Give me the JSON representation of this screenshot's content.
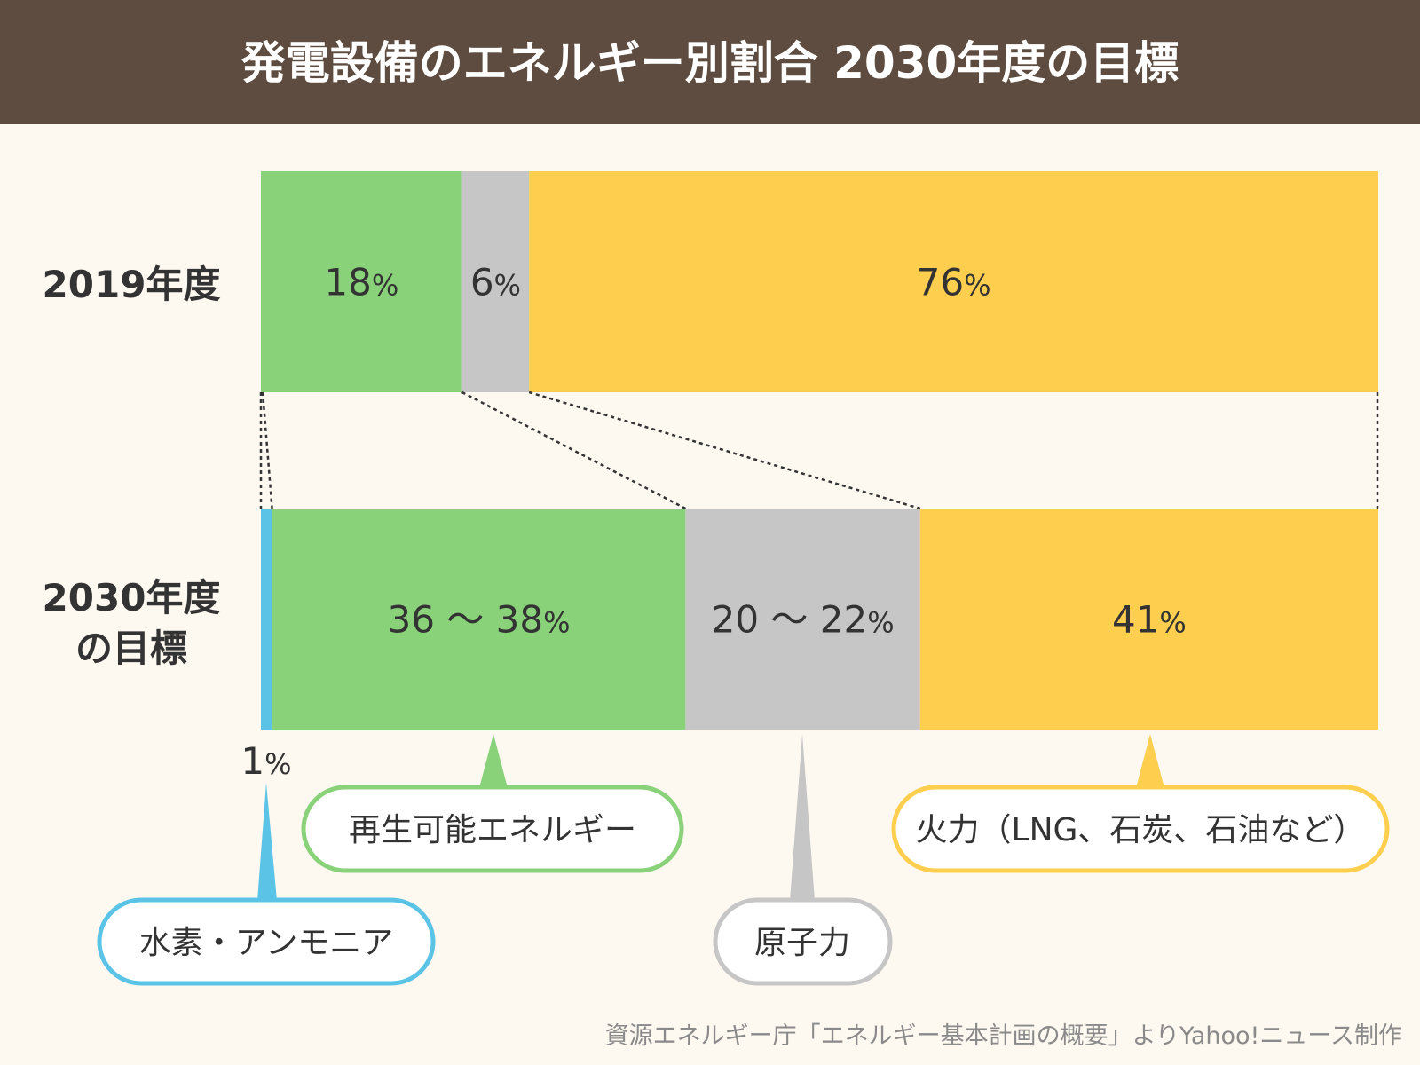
{
  "header": {
    "title": "発電設備のエネルギー別割合 2030年度の目標"
  },
  "colors": {
    "header_bg": "#5e4c40",
    "background": "#fdf8f0",
    "hydrogen": "#5bc4e6",
    "renewable": "#89d27a",
    "nuclear": "#c6c6c6",
    "thermal": "#fecf4e",
    "text": "#333333"
  },
  "chart_data": {
    "type": "bar",
    "orientation": "horizontal-stacked-100",
    "title": "発電設備のエネルギー別割合 2030年度の目標",
    "rows": [
      {
        "label_lines": [
          "2019年度"
        ],
        "segments": [
          {
            "series": "renewable",
            "value": 18,
            "label_num": "18",
            "label_unit": "%"
          },
          {
            "series": "nuclear",
            "value": 6,
            "label_num": "6",
            "label_unit": "%"
          },
          {
            "series": "thermal",
            "value": 76,
            "label_num": "76",
            "label_unit": "%"
          }
        ]
      },
      {
        "label_lines": [
          "2030年度",
          "の目標"
        ],
        "segments": [
          {
            "series": "hydrogen",
            "value": 1,
            "label_num": "1",
            "label_unit": "%"
          },
          {
            "series": "renewable",
            "value": [
              36,
              38
            ],
            "label_num": "36 ～ 38",
            "label_unit": "%"
          },
          {
            "series": "nuclear",
            "value": [
              20,
              22
            ],
            "label_num": "20 ～ 22",
            "label_unit": "%"
          },
          {
            "series": "thermal",
            "value": 41,
            "label_num": "41",
            "label_unit": "%"
          }
        ]
      }
    ],
    "legend": {
      "hydrogen": "水素・アンモニア",
      "renewable": "再生可能エネルギー",
      "nuclear": "原子力",
      "thermal": "火力（LNG、石炭、石油など）"
    },
    "legend_placement": "bottom-callouts",
    "xlim": [
      0,
      100
    ],
    "grid": false
  },
  "source": "資源エネルギー庁「エネルギー基本計画の概要」よりYahoo!ニュース制作"
}
